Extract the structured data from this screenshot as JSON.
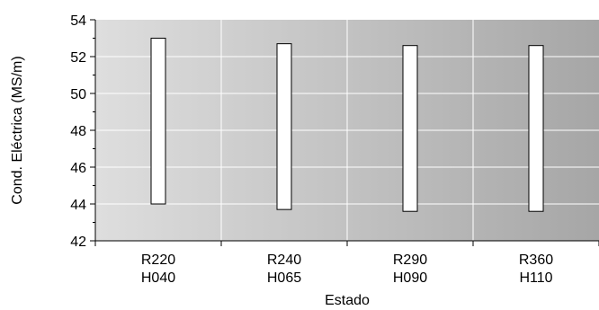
{
  "chart_data": {
    "type": "bar",
    "subtype": "floating-range",
    "title": "",
    "xlabel": "Estado",
    "ylabel": "Cond. Eléctrica (MS/m)",
    "ylim": [
      42,
      54
    ],
    "yticks": [
      "42",
      "44",
      "46",
      "48",
      "50",
      "52",
      "54"
    ],
    "categories": [
      [
        "R220",
        "H040"
      ],
      [
        "R240",
        "H065"
      ],
      [
        "R290",
        "H090"
      ],
      [
        "R360",
        "H110"
      ]
    ],
    "series": [
      {
        "low": [
          44.0,
          43.7,
          43.6,
          43.6
        ],
        "high": [
          53.0,
          52.7,
          52.6,
          52.6
        ]
      }
    ],
    "grid": true,
    "legend": "none",
    "colors": {
      "plot_bg_left": "#dedede",
      "plot_bg_right": "#a6a6a6",
      "bar_fill": "#ffffff",
      "bar_stroke": "#000000",
      "grid": "#ffffff"
    }
  }
}
